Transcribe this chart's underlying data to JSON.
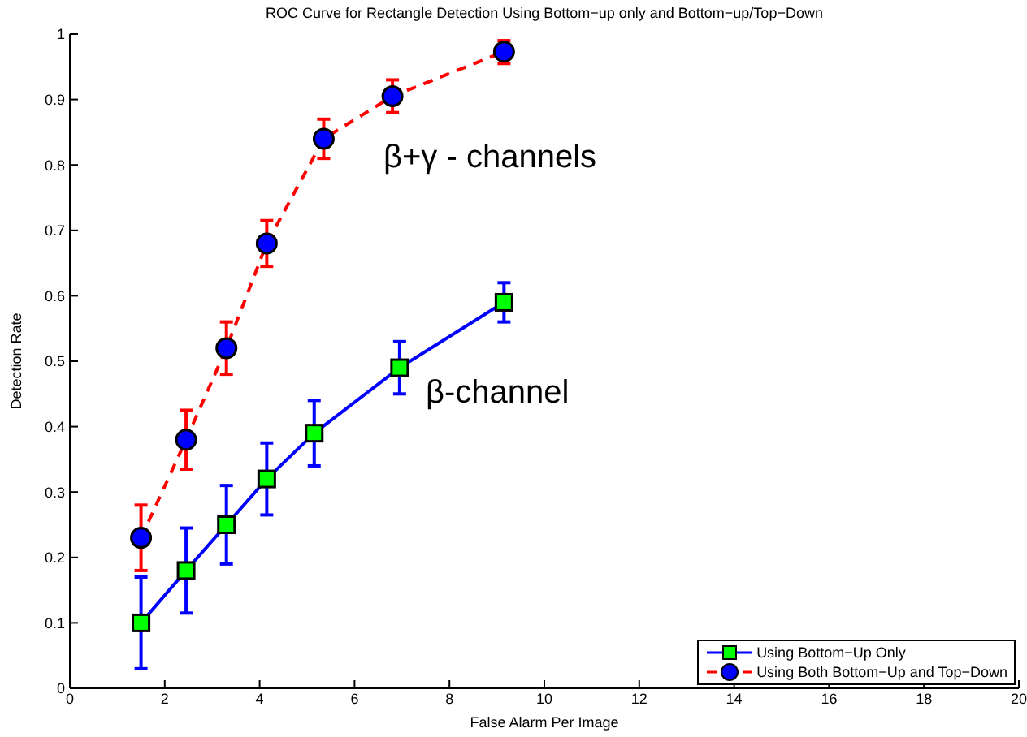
{
  "chart_data": {
    "type": "line",
    "title": "ROC Curve for Rectangle Detection Using Bottom−up only and Bottom−up/Top−Down",
    "xlabel": "False Alarm Per Image",
    "ylabel": "Detection Rate",
    "xlim": [
      0,
      20
    ],
    "xticks": [
      0,
      2,
      4,
      6,
      8,
      10,
      12,
      14,
      16,
      18,
      20
    ],
    "ylim": [
      0,
      1
    ],
    "yticks": [
      0,
      0.1,
      0.2,
      0.3,
      0.4,
      0.5,
      0.6,
      0.7,
      0.8,
      0.9,
      1
    ],
    "grid": false,
    "legend": "bottom right",
    "series": [
      {
        "name": "Using Bottom−Up Only",
        "color": "#0000ff",
        "line_style": "solid",
        "marker": "square",
        "colors": [
          "#00ff00",
          "#00ff00",
          "#00ff00",
          "#00ff00",
          "#00ff00",
          "#00ff00",
          "#00ff00"
        ],
        "x": [
          1.5,
          2.45,
          3.3,
          4.15,
          5.15,
          6.95,
          9.15
        ],
        "values": [
          0.1,
          0.18,
          0.25,
          0.32,
          0.39,
          0.49,
          0.59
        ],
        "errors": [
          [
            0.03,
            0.17
          ],
          [
            0.115,
            0.245
          ],
          [
            0.19,
            0.31
          ],
          [
            0.265,
            0.375
          ],
          [
            0.34,
            0.44
          ],
          [
            0.45,
            0.53
          ],
          [
            0.56,
            0.62
          ]
        ]
      },
      {
        "name": "Using Both Bottom−Up and Top−Down",
        "color": "#ff0000",
        "line_style": "dashed",
        "marker": "circle",
        "colors": [
          "#0000ff",
          "#0000ff",
          "#0000ff",
          "#0000ff",
          "#0000ff",
          "#0000ff",
          "#0000ff"
        ],
        "x": [
          1.5,
          2.45,
          3.3,
          4.15,
          5.35,
          6.8,
          9.15
        ],
        "values": [
          0.23,
          0.38,
          0.52,
          0.68,
          0.84,
          0.905,
          0.973
        ],
        "errors": [
          [
            0.18,
            0.28
          ],
          [
            0.335,
            0.425
          ],
          [
            0.48,
            0.56
          ],
          [
            0.645,
            0.715
          ],
          [
            0.81,
            0.87
          ],
          [
            0.88,
            0.93
          ],
          [
            0.955,
            0.99
          ]
        ]
      }
    ],
    "annotations": [
      "β+γ - channels",
      "β-channel"
    ]
  }
}
